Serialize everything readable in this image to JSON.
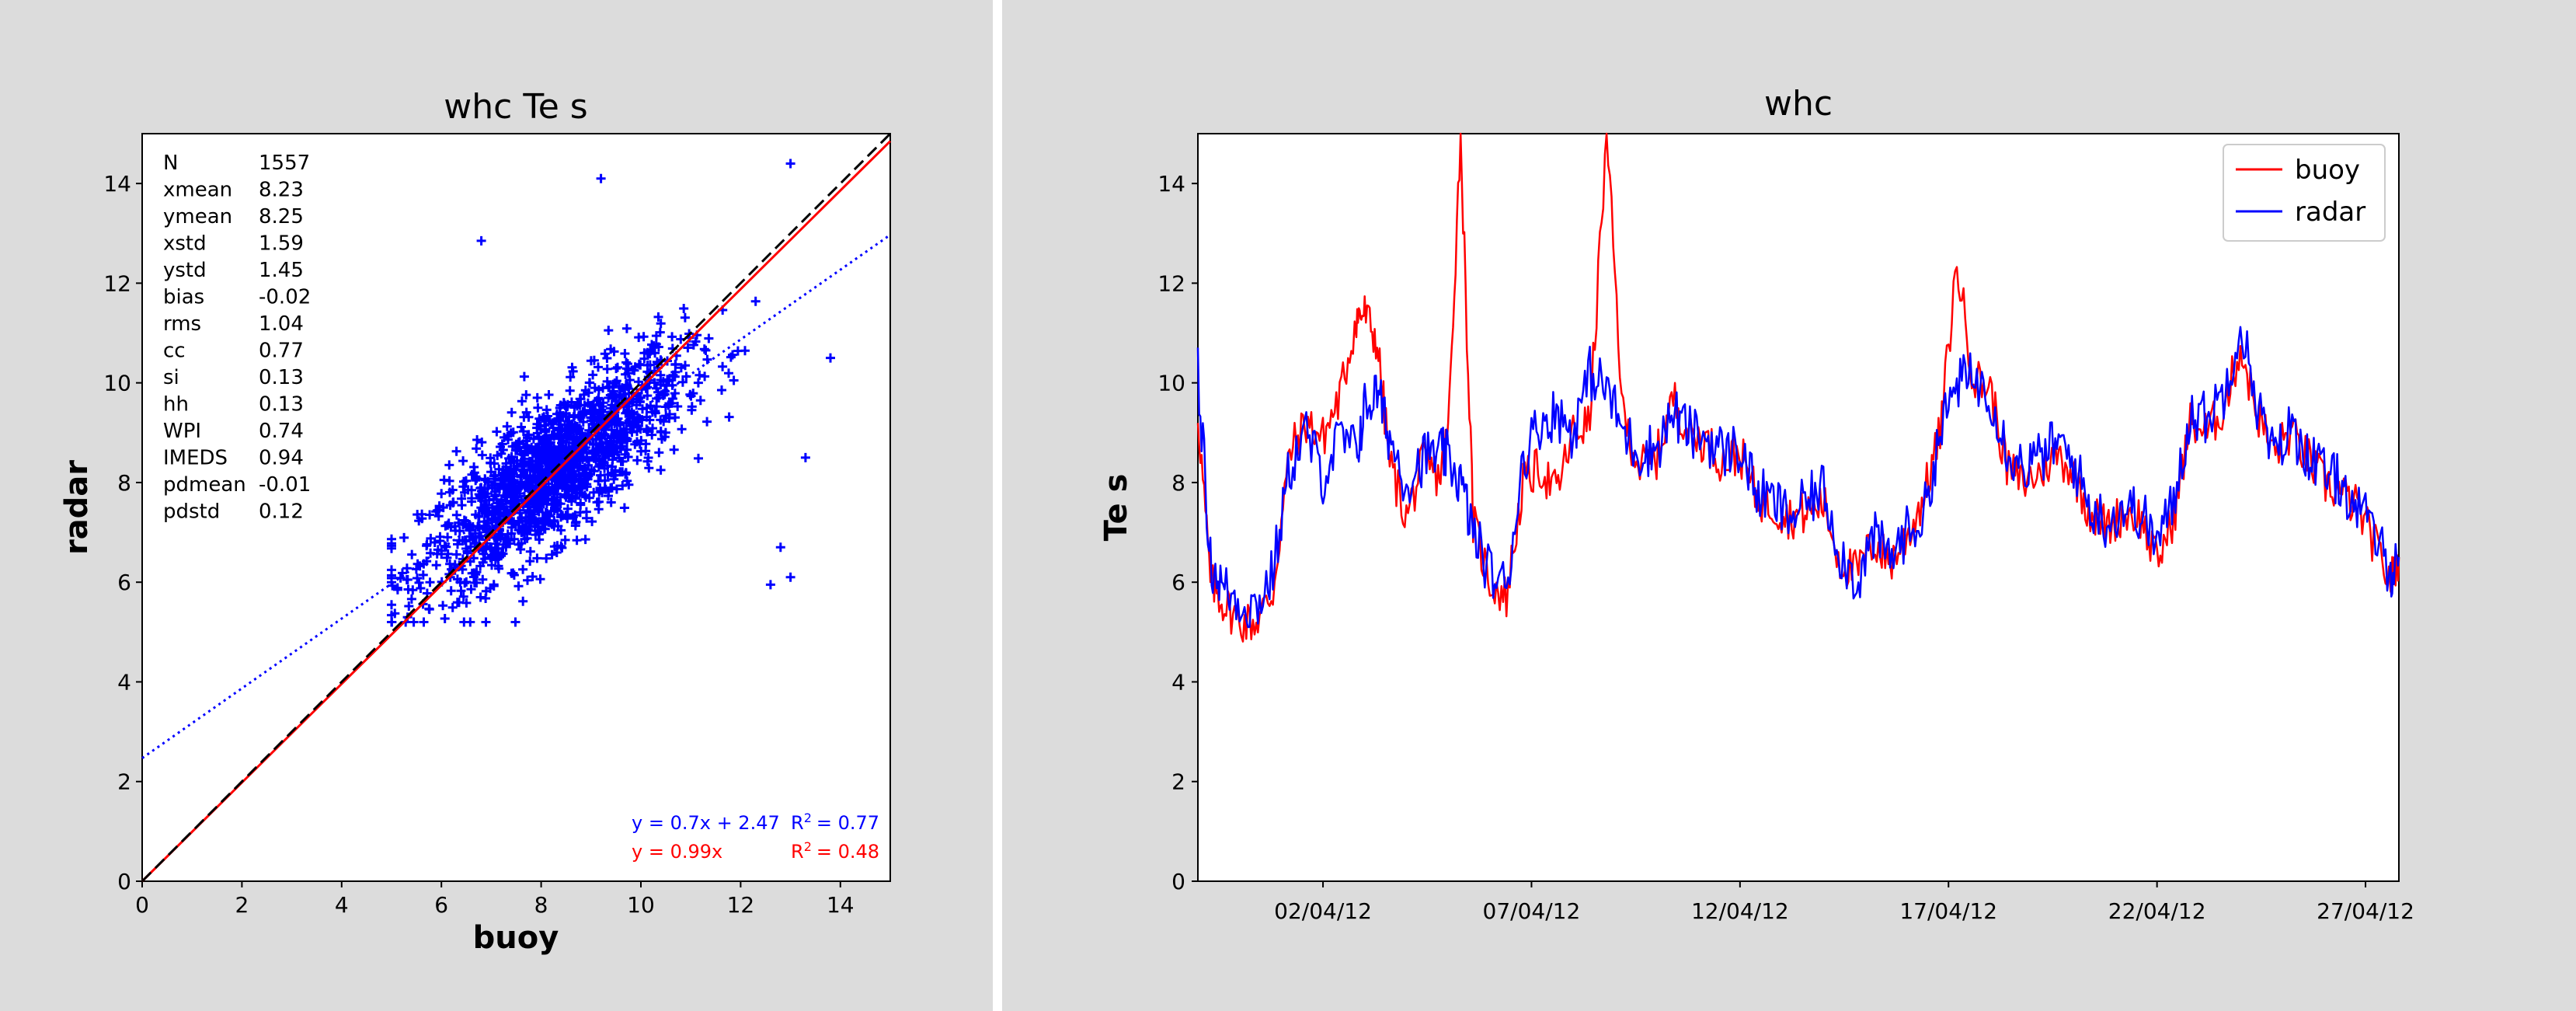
{
  "colors": {
    "buoy": "#ff0000",
    "radar": "#0000ff",
    "panel": "#dcdcdc"
  },
  "chart_data": [
    {
      "type": "scatter",
      "title": "whc Te s",
      "xlabel": "buoy",
      "ylabel": "radar",
      "xlim": [
        0,
        15
      ],
      "ylim": [
        0,
        15
      ],
      "xticks": [
        "0",
        "2",
        "4",
        "6",
        "8",
        "10",
        "12",
        "14"
      ],
      "yticks": [
        "0",
        "2",
        "4",
        "6",
        "8",
        "10",
        "12",
        "14"
      ],
      "stats": [
        {
          "name": "N",
          "value": "1557"
        },
        {
          "name": "xmean",
          "value": "8.23"
        },
        {
          "name": "ymean",
          "value": "8.25"
        },
        {
          "name": "xstd",
          "value": "1.59"
        },
        {
          "name": "ystd",
          "value": "1.45"
        },
        {
          "name": "bias",
          "value": "-0.02"
        },
        {
          "name": "rms",
          "value": "1.04"
        },
        {
          "name": "cc",
          "value": "0.77"
        },
        {
          "name": "si",
          "value": "0.13"
        },
        {
          "name": "hh",
          "value": "0.13"
        },
        {
          "name": "WPI",
          "value": "0.74"
        },
        {
          "name": "IMEDS",
          "value": "0.94"
        },
        {
          "name": "pdmean",
          "value": "-0.01"
        },
        {
          "name": "pdstd",
          "value": "0.12"
        }
      ],
      "fits": {
        "linear": {
          "equation": "y = 0.7x + 2.47",
          "r2_label": "R",
          "r2_value": "= 0.77",
          "slope": 0.7,
          "intercept": 2.47
        },
        "origin": {
          "equation": "y = 0.99x",
          "r2_label": "R",
          "r2_value": "= 0.48",
          "slope": 0.99
        }
      },
      "points_summary": {
        "count": 1557,
        "center": [
          8.23,
          8.25
        ],
        "outliers": [
          [
            9.2,
            14.1
          ],
          [
            13.0,
            14.4
          ],
          [
            13.8,
            10.5
          ],
          [
            13.3,
            8.5
          ],
          [
            12.8,
            6.7
          ],
          [
            12.6,
            5.95
          ],
          [
            13.0,
            6.1
          ],
          [
            6.8,
            12.85
          ]
        ]
      }
    },
    {
      "type": "line",
      "title": "whc",
      "xlabel": "",
      "ylabel": "Te s",
      "ylim": [
        0,
        15
      ],
      "xlim_days": [
        0,
        28.8
      ],
      "yticks": [
        "0",
        "2",
        "4",
        "6",
        "8",
        "10",
        "12",
        "14"
      ],
      "xticks": [
        {
          "day": 3,
          "label": "02/04/12"
        },
        {
          "day": 8,
          "label": "07/04/12"
        },
        {
          "day": 13,
          "label": "12/04/12"
        },
        {
          "day": 18,
          "label": "17/04/12"
        },
        {
          "day": 23,
          "label": "22/04/12"
        },
        {
          "day": 28,
          "label": "27/04/12"
        }
      ],
      "legend": {
        "position": "top-right",
        "entries": [
          "buoy",
          "radar"
        ]
      },
      "series": [
        {
          "name": "buoy",
          "x": [
            0,
            0.3,
            0.6,
            1.0,
            1.4,
            1.8,
            2.2,
            2.6,
            3.0,
            3.4,
            3.8,
            4.0,
            4.3,
            4.6,
            5.0,
            5.4,
            5.8,
            6.0,
            6.3,
            6.6,
            7.0,
            7.4,
            7.8,
            8.2,
            8.6,
            9.0,
            9.4,
            9.8,
            10.2,
            10.6,
            11.0,
            11.4,
            11.8,
            12.2,
            12.6,
            13.0,
            13.4,
            13.8,
            14.2,
            14.6,
            15.0,
            15.4,
            15.8,
            16.2,
            16.6,
            17.0,
            17.4,
            17.8,
            18.2,
            18.6,
            19.0,
            19.4,
            19.8,
            20.2,
            20.6,
            21.0,
            21.4,
            21.8,
            22.2,
            22.6,
            23.0,
            23.4,
            23.8,
            24.2,
            24.6,
            25.0,
            25.4,
            25.8,
            26.2,
            26.6,
            27.0,
            27.4,
            27.8,
            28.2,
            28.6,
            28.8
          ],
          "values": [
            9.4,
            6.0,
            5.6,
            5.2,
            5.2,
            5.8,
            8.6,
            9.2,
            8.9,
            9.7,
            11.3,
            11.4,
            10.8,
            8.4,
            7.3,
            8.4,
            8.1,
            9.0,
            15.0,
            7.2,
            6.0,
            5.7,
            8.0,
            8.3,
            7.8,
            9.0,
            9.2,
            15.0,
            9.3,
            8.3,
            8.5,
            9.7,
            9.0,
            8.8,
            8.4,
            8.6,
            7.7,
            7.5,
            7.3,
            7.4,
            7.6,
            6.4,
            6.2,
            6.8,
            6.4,
            6.9,
            7.7,
            9.0,
            12.4,
            10.1,
            9.9,
            8.3,
            8.0,
            8.2,
            8.6,
            8.2,
            7.4,
            7.1,
            7.4,
            7.3,
            6.4,
            7.3,
            9.2,
            9.0,
            9.5,
            10.7,
            9.4,
            8.6,
            9.0,
            8.5,
            8.0,
            7.8,
            7.5,
            6.8,
            6.0,
            6.5
          ]
        },
        {
          "name": "radar",
          "x": [
            0,
            0.3,
            0.6,
            1.0,
            1.4,
            1.8,
            2.2,
            2.6,
            3.0,
            3.4,
            3.8,
            4.0,
            4.3,
            4.6,
            5.0,
            5.4,
            5.8,
            6.0,
            6.3,
            6.6,
            7.0,
            7.4,
            7.8,
            8.2,
            8.6,
            9.0,
            9.4,
            9.8,
            10.2,
            10.6,
            11.0,
            11.4,
            11.8,
            12.2,
            12.6,
            13.0,
            13.4,
            13.8,
            14.2,
            14.6,
            15.0,
            15.4,
            15.8,
            16.2,
            16.6,
            17.0,
            17.4,
            17.8,
            18.2,
            18.6,
            19.0,
            19.4,
            19.8,
            20.2,
            20.6,
            21.0,
            21.4,
            21.8,
            22.2,
            22.6,
            23.0,
            23.4,
            23.8,
            24.2,
            24.6,
            25.0,
            25.4,
            25.8,
            26.2,
            26.6,
            27.0,
            27.4,
            27.8,
            28.2,
            28.6,
            28.8
          ],
          "values": [
            10.3,
            6.4,
            5.9,
            5.6,
            5.5,
            6.2,
            8.3,
            9.0,
            8.1,
            8.9,
            8.6,
            9.5,
            9.8,
            8.9,
            8.0,
            8.5,
            8.6,
            8.5,
            8.0,
            7.0,
            6.2,
            5.9,
            8.5,
            9.2,
            9.4,
            9.0,
            10.2,
            9.9,
            9.0,
            8.6,
            8.7,
            9.4,
            9.0,
            8.9,
            8.6,
            8.7,
            7.8,
            7.6,
            7.3,
            7.6,
            7.9,
            6.6,
            6.0,
            6.9,
            6.5,
            7.0,
            7.3,
            9.0,
            10.0,
            10.1,
            9.8,
            8.7,
            8.3,
            8.5,
            8.8,
            8.4,
            7.5,
            7.2,
            7.5,
            7.4,
            6.8,
            7.6,
            9.4,
            9.3,
            9.8,
            11.2,
            9.6,
            8.5,
            9.1,
            8.6,
            8.2,
            8.0,
            7.5,
            7.0,
            6.2,
            6.5
          ]
        }
      ]
    }
  ]
}
